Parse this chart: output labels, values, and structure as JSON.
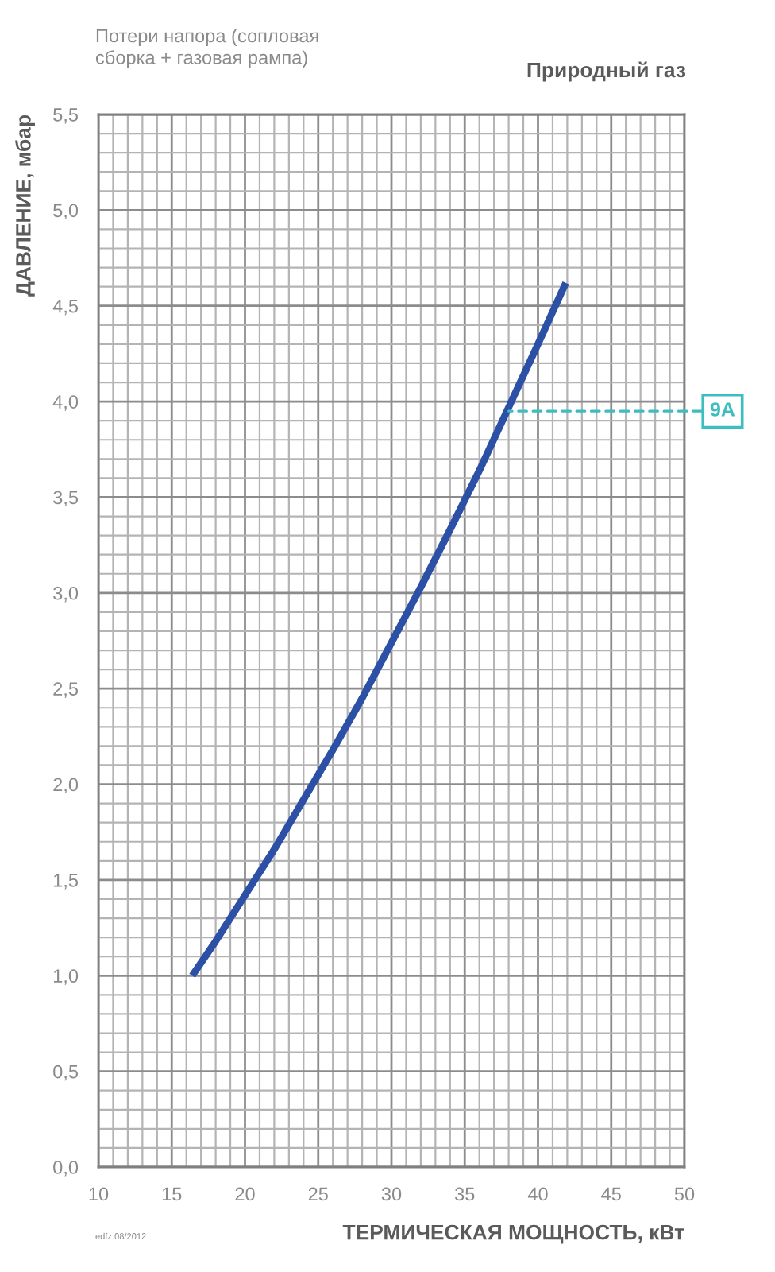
{
  "chart_data": {
    "type": "line",
    "title": "Потери напора (сопловая\nсборка + газовая рампа)",
    "subtitle": "Природный газ",
    "xlabel": "ТЕРМИЧЕСКАЯ МОЩНОСТЬ, кВт",
    "ylabel": "ДАВЛЕНИЕ, мбар",
    "x": [
      16.4,
      18,
      20,
      22,
      24,
      26,
      28,
      30,
      32,
      34,
      36,
      38,
      40,
      41.9
    ],
    "series": [
      {
        "color": "#2b50a5",
        "values": [
          1.0,
          1.18,
          1.42,
          1.66,
          1.92,
          2.18,
          2.45,
          2.74,
          3.03,
          3.33,
          3.64,
          3.97,
          4.3,
          4.62
        ]
      }
    ],
    "xlim": [
      10,
      50
    ],
    "ylim": [
      0,
      5.5
    ],
    "xticks": [
      10,
      {
        "value": 11,
        "label": null
      },
      {
        "value": 12,
        "label": null
      },
      {
        "value": 13,
        "label": null
      },
      {
        "value": 14,
        "label": null
      },
      15,
      {
        "value": 16,
        "label": null
      },
      {
        "value": 17,
        "label": null
      },
      {
        "value": 18,
        "label": null
      },
      {
        "value": 19,
        "label": null
      },
      20,
      {
        "value": 21,
        "label": null
      },
      {
        "value": 22,
        "label": null
      },
      {
        "value": 23,
        "label": null
      },
      {
        "value": 24,
        "label": null
      },
      25,
      {
        "value": 26,
        "label": null
      },
      {
        "value": 27,
        "label": null
      },
      {
        "value": 28,
        "label": null
      },
      {
        "value": 29,
        "label": null
      },
      30,
      {
        "value": 31,
        "label": null
      },
      {
        "value": 32,
        "label": null
      },
      {
        "value": 33,
        "label": null
      },
      {
        "value": 34,
        "label": null
      },
      35,
      {
        "value": 36,
        "label": null
      },
      {
        "value": 37,
        "label": null
      },
      {
        "value": 38,
        "label": null
      },
      {
        "value": 39,
        "label": null
      },
      40,
      {
        "value": 41,
        "label": null
      },
      {
        "value": 42,
        "label": null
      },
      {
        "value": 43,
        "label": null
      },
      {
        "value": 44,
        "label": null
      },
      45,
      {
        "value": 46,
        "label": null
      },
      {
        "value": 47,
        "label": null
      },
      {
        "value": 48,
        "label": null
      },
      {
        "value": 49,
        "label": null
      },
      50
    ],
    "yticks": [
      {
        "value": 0,
        "label": "0,0"
      },
      {
        "value": 0.1,
        "label": null
      },
      {
        "value": 0.2,
        "label": null
      },
      {
        "value": 0.3,
        "label": null
      },
      {
        "value": 0.4,
        "label": null
      },
      {
        "value": 0.5,
        "label": "0,5"
      },
      {
        "value": 0.6,
        "label": null
      },
      {
        "value": 0.7,
        "label": null
      },
      {
        "value": 0.8,
        "label": null
      },
      {
        "value": 0.9,
        "label": null
      },
      {
        "value": 1.0,
        "label": "1,0"
      },
      {
        "value": 1.1,
        "label": null
      },
      {
        "value": 1.2,
        "label": null
      },
      {
        "value": 1.3,
        "label": null
      },
      {
        "value": 1.4,
        "label": null
      },
      {
        "value": 1.5,
        "label": "1,5"
      },
      {
        "value": 1.6,
        "label": null
      },
      {
        "value": 1.7,
        "label": null
      },
      {
        "value": 1.8,
        "label": null
      },
      {
        "value": 1.9,
        "label": null
      },
      {
        "value": 2.0,
        "label": "2,0"
      },
      {
        "value": 2.1,
        "label": null
      },
      {
        "value": 2.2,
        "label": null
      },
      {
        "value": 2.3,
        "label": null
      },
      {
        "value": 2.4,
        "label": null
      },
      {
        "value": 2.5,
        "label": "2,5"
      },
      {
        "value": 2.6,
        "label": null
      },
      {
        "value": 2.7,
        "label": null
      },
      {
        "value": 2.8,
        "label": null
      },
      {
        "value": 2.9,
        "label": null
      },
      {
        "value": 3.0,
        "label": "3,0"
      },
      {
        "value": 3.1,
        "label": null
      },
      {
        "value": 3.2,
        "label": null
      },
      {
        "value": 3.3,
        "label": null
      },
      {
        "value": 3.4,
        "label": null
      },
      {
        "value": 3.5,
        "label": "3,5"
      },
      {
        "value": 3.6,
        "label": null
      },
      {
        "value": 3.7,
        "label": null
      },
      {
        "value": 3.8,
        "label": null
      },
      {
        "value": 3.9,
        "label": null
      },
      {
        "value": 4.0,
        "label": "4,0"
      },
      {
        "value": 4.1,
        "label": null
      },
      {
        "value": 4.2,
        "label": null
      },
      {
        "value": 4.3,
        "label": null
      },
      {
        "value": 4.4,
        "label": null
      },
      {
        "value": 4.5,
        "label": "4,5"
      },
      {
        "value": 4.6,
        "label": null
      },
      {
        "value": 4.7,
        "label": null
      },
      {
        "value": 4.8,
        "label": null
      },
      {
        "value": 4.9,
        "label": null
      },
      {
        "value": 5.0,
        "label": "5,0"
      },
      {
        "value": 5.1,
        "label": null
      },
      {
        "value": 5.2,
        "label": null
      },
      {
        "value": 5.3,
        "label": null
      },
      {
        "value": 5.4,
        "label": null
      },
      {
        "value": 5.5,
        "label": "5,5"
      }
    ],
    "grid": true,
    "marker": "none",
    "line_style": "solid",
    "annotations": [
      {
        "text": "9A",
        "x": 38,
        "y": 3.95
      },
      "edfz.08/2012"
    ]
  }
}
